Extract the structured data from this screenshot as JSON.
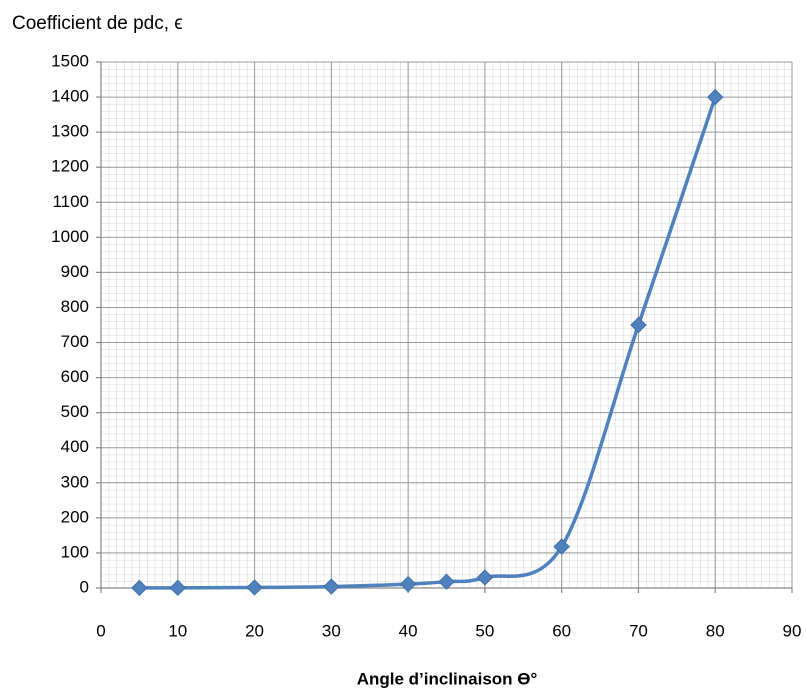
{
  "chart_data": {
    "type": "line",
    "title": "Coefficient de  pdc, ϵ",
    "x_label": "Angle d’inclinaison ϴ°",
    "x": [
      5,
      10,
      20,
      30,
      40,
      45,
      50,
      60,
      70,
      80
    ],
    "series": [
      {
        "name": "ϵ",
        "color": "#4f81bd",
        "values": [
          0.2,
          0.5,
          1.5,
          4,
          11,
          18,
          30,
          118,
          750,
          1400
        ]
      }
    ],
    "xlim": [
      0,
      90
    ],
    "xticks": [
      0,
      10,
      20,
      30,
      40,
      50,
      60,
      70,
      80,
      90
    ],
    "ylim": [
      0,
      1500
    ],
    "yticks": [
      0,
      100,
      200,
      300,
      400,
      500,
      600,
      700,
      800,
      900,
      1000,
      1100,
      1200,
      1300,
      1400,
      1500
    ],
    "grid": true
  }
}
